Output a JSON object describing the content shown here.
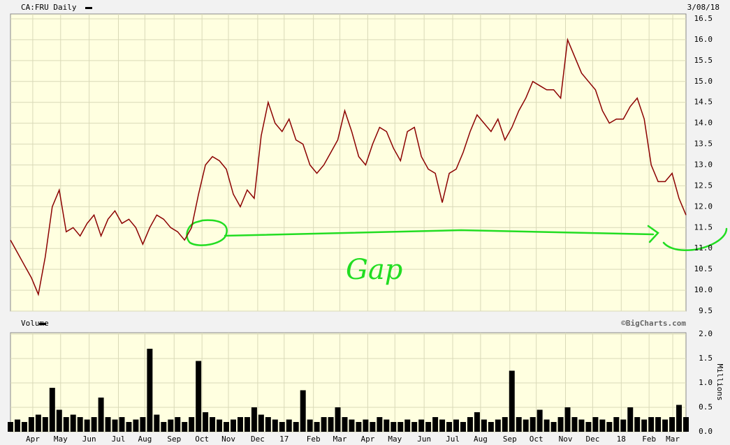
{
  "chart_data": [
    {
      "type": "line",
      "title": "CA:FRU Daily",
      "date": "3/08/18",
      "color": "#8b0000",
      "values": [
        11.2,
        10.9,
        10.6,
        10.3,
        9.9,
        10.8,
        12.0,
        12.4,
        11.4,
        11.5,
        11.3,
        11.6,
        11.8,
        11.3,
        11.7,
        11.9,
        11.6,
        11.7,
        11.5,
        11.1,
        11.5,
        11.8,
        11.7,
        11.5,
        11.4,
        11.2,
        11.5,
        12.3,
        13.0,
        13.2,
        13.1,
        12.9,
        12.3,
        12.0,
        12.4,
        12.2,
        13.7,
        14.5,
        14.0,
        13.8,
        14.1,
        13.6,
        13.5,
        13.0,
        12.8,
        13.0,
        13.3,
        13.6,
        14.3,
        13.8,
        13.2,
        13.0,
        13.5,
        13.9,
        13.8,
        13.4,
        13.1,
        13.8,
        13.9,
        13.2,
        12.9,
        12.8,
        12.1,
        12.8,
        12.9,
        13.3,
        13.8,
        14.2,
        14.0,
        13.8,
        14.1,
        13.6,
        13.9,
        14.3,
        14.6,
        15.0,
        14.9,
        14.8,
        14.8,
        14.6,
        16.0,
        15.6,
        15.2,
        15.0,
        14.8,
        14.3,
        14.0,
        14.1,
        14.1,
        14.4,
        14.6,
        14.1,
        13.0,
        12.6,
        12.6,
        12.8,
        12.2,
        11.8
      ],
      "xlim": [
        0,
        97
      ],
      "ylim": [
        9.5,
        16.5
      ],
      "yticks": [
        9.5,
        {
          "value": 10,
          "label": "10.0"
        },
        10.5,
        {
          "value": 11,
          "label": "11.0"
        },
        11.5,
        {
          "value": 12,
          "label": "12.0"
        },
        12.5,
        {
          "value": 13,
          "label": "13.0"
        },
        13.5,
        {
          "value": 14,
          "label": "14.0"
        },
        14.5,
        {
          "value": 15,
          "label": "15.0"
        },
        15.5,
        {
          "value": 16,
          "label": "16.0"
        },
        16.5
      ],
      "grid": true,
      "annotation": "Gap",
      "annotation_color": "#22dd22"
    },
    {
      "type": "bar",
      "title": "Volume",
      "source": "©BigCharts.com",
      "ylabel": "Millions",
      "color": "#000000",
      "values": [
        0.2,
        0.25,
        0.2,
        0.3,
        0.35,
        0.3,
        0.9,
        0.45,
        0.3,
        0.35,
        0.3,
        0.25,
        0.3,
        0.7,
        0.3,
        0.25,
        0.3,
        0.2,
        0.25,
        0.3,
        1.7,
        0.35,
        0.2,
        0.25,
        0.3,
        0.2,
        0.3,
        1.45,
        0.4,
        0.3,
        0.25,
        0.2,
        0.25,
        0.3,
        0.3,
        0.5,
        0.35,
        0.3,
        0.25,
        0.2,
        0.25,
        0.2,
        0.85,
        0.25,
        0.2,
        0.3,
        0.3,
        0.5,
        0.3,
        0.25,
        0.2,
        0.25,
        0.2,
        0.3,
        0.25,
        0.2,
        0.2,
        0.25,
        0.2,
        0.25,
        0.2,
        0.3,
        0.25,
        0.2,
        0.25,
        0.2,
        0.3,
        0.4,
        0.25,
        0.2,
        0.25,
        0.3,
        1.25,
        0.3,
        0.25,
        0.3,
        0.45,
        0.25,
        0.2,
        0.3,
        0.5,
        0.3,
        0.25,
        0.2,
        0.3,
        0.25,
        0.2,
        0.3,
        0.25,
        0.5,
        0.3,
        0.25,
        0.3,
        0.3,
        0.25,
        0.3,
        0.55,
        0.3
      ],
      "xlim": [
        0,
        97
      ],
      "ylim": [
        0,
        2
      ],
      "yticks": [
        {
          "value": 0,
          "label": "0.0"
        },
        0.5,
        {
          "value": 1,
          "label": "1.0"
        },
        1.5,
        {
          "value": 2,
          "label": "2.0"
        }
      ],
      "xticks": [
        {
          "value": 3.2,
          "label": "Apr"
        },
        {
          "value": 7.2,
          "label": "May"
        },
        {
          "value": 11.3,
          "label": "Jun"
        },
        {
          "value": 15.5,
          "label": "Jul"
        },
        {
          "value": 19.3,
          "label": "Aug"
        },
        {
          "value": 23.5,
          "label": "Sep"
        },
        {
          "value": 27.5,
          "label": "Oct"
        },
        {
          "value": 31.3,
          "label": "Nov"
        },
        {
          "value": 35.5,
          "label": "Dec"
        },
        {
          "value": 39.3,
          "label": "17"
        },
        {
          "value": 43.5,
          "label": "Feb"
        },
        {
          "value": 47.3,
          "label": "Mar"
        },
        {
          "value": 51.3,
          "label": "Apr"
        },
        {
          "value": 55.2,
          "label": "May"
        },
        {
          "value": 59.4,
          "label": "Jun"
        },
        {
          "value": 63.5,
          "label": "Jul"
        },
        {
          "value": 67.5,
          "label": "Aug"
        },
        {
          "value": 71.7,
          "label": "Sep"
        },
        {
          "value": 75.5,
          "label": "Oct"
        },
        {
          "value": 79.7,
          "label": "Nov"
        },
        {
          "value": 83.6,
          "label": "Dec"
        },
        {
          "value": 87.7,
          "label": "18"
        },
        {
          "value": 91.7,
          "label": "Feb"
        },
        {
          "value": 95.1,
          "label": "Mar"
        }
      ],
      "grid": true
    }
  ]
}
